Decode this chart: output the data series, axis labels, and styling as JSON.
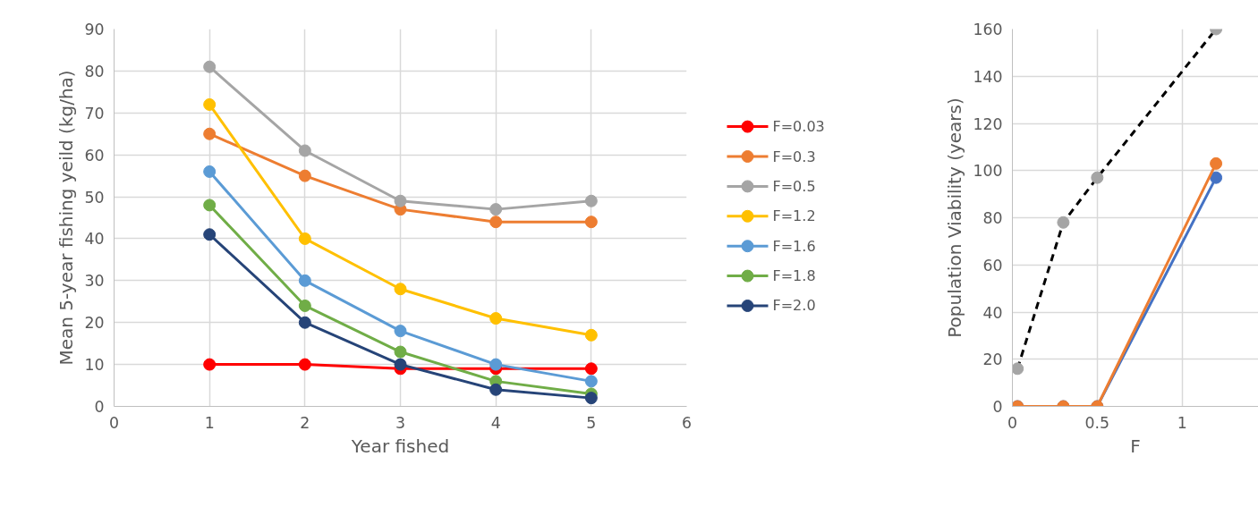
{
  "chart_data": [
    {
      "type": "line",
      "xlabel": "Year fished",
      "ylabel": "Mean 5-year fishing yeild (kg/ha)",
      "x": [
        1,
        2,
        3,
        4,
        5
      ],
      "xlim": [
        0,
        6
      ],
      "xticks": [
        0,
        1,
        2,
        3,
        4,
        5,
        6
      ],
      "ylim": [
        0,
        90
      ],
      "yticks": [
        0,
        10,
        20,
        30,
        40,
        50,
        60,
        70,
        80,
        90
      ],
      "grid": true,
      "legend": "right",
      "marker": "circle",
      "line_style": "solid",
      "series": [
        {
          "name": "F=0.03",
          "color": "#ff0000",
          "values": [
            10,
            10,
            9,
            9,
            9
          ]
        },
        {
          "name": "F=0.3",
          "color": "#ed7d31",
          "values": [
            65,
            55,
            47,
            44,
            44
          ]
        },
        {
          "name": "F=0.5",
          "color": "#a5a5a5",
          "values": [
            81,
            61,
            49,
            47,
            49
          ]
        },
        {
          "name": "F=1.2",
          "color": "#ffc000",
          "values": [
            72,
            40,
            28,
            21,
            17
          ]
        },
        {
          "name": "F=1.6",
          "color": "#5b9bd5",
          "values": [
            56,
            30,
            18,
            10,
            6
          ]
        },
        {
          "name": "F=1.8",
          "color": "#70ad47",
          "values": [
            48,
            24,
            13,
            6,
            3
          ]
        },
        {
          "name": "F=2.0",
          "color": "#264478",
          "values": [
            41,
            20,
            10,
            4,
            2
          ]
        }
      ]
    },
    {
      "type": "line",
      "xlabel": "F",
      "ylabel": "Population Viability (years)",
      "xlim": [
        0,
        1.45
      ],
      "xticks": [
        0,
        0.5,
        1
      ],
      "ylim": [
        0,
        160
      ],
      "yticks": [
        0,
        20,
        40,
        60,
        80,
        100,
        120,
        140,
        160
      ],
      "grid": true,
      "marker": "circle",
      "series": [
        {
          "color": "#000000",
          "colors": [
            "#a5a5a5",
            "#a5a5a5",
            "#a5a5a5",
            "#a5a5a5"
          ],
          "line_style": "dashed",
          "x": [
            0.03,
            0.3,
            0.5,
            1.2
          ],
          "values": [
            16,
            78,
            97,
            160
          ]
        },
        {
          "color": "#4472c4",
          "line_style": "solid",
          "x": [
            0.03,
            0.3,
            0.5,
            1.2
          ],
          "values": [
            0,
            0,
            0,
            97
          ]
        },
        {
          "color": "#ed7d31",
          "line_style": "solid",
          "x": [
            0.03,
            0.3,
            0.5,
            1.2
          ],
          "values": [
            0,
            0,
            0,
            103
          ]
        }
      ]
    }
  ]
}
